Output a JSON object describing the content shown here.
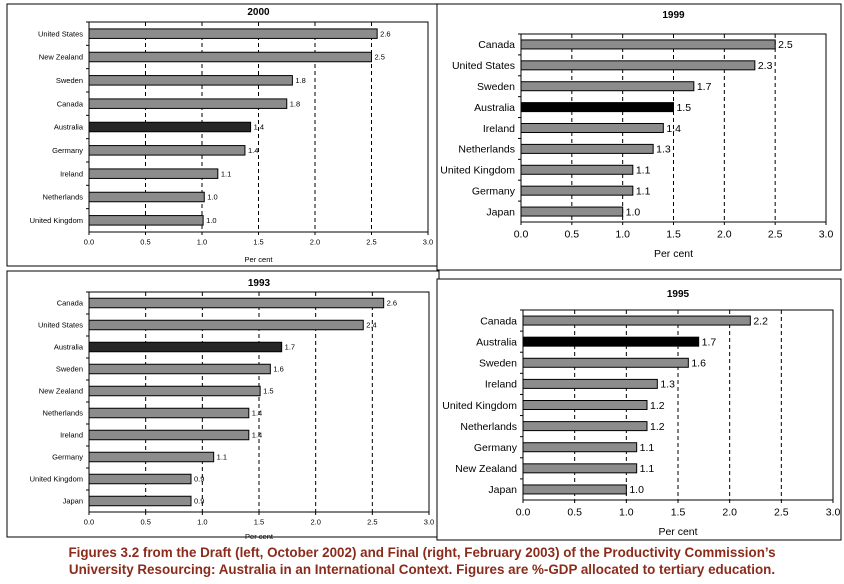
{
  "chart_data": [
    {
      "type": "bar",
      "orientation": "horizontal",
      "title": "2000",
      "xlabel": "Per cent",
      "xlim": [
        0,
        3.0
      ],
      "xticks": [
        "0.0",
        "0.5",
        "1.0",
        "1.5",
        "2.0",
        "2.5",
        "3.0"
      ],
      "grid": "vertical dashed",
      "categories": [
        "United States",
        "New Zealand",
        "Sweden",
        "Canada",
        "Australia",
        "Germany",
        "Ireland",
        "Netherlands",
        "United Kingdom"
      ],
      "values": [
        2.55,
        2.5,
        1.8,
        1.75,
        1.43,
        1.38,
        1.14,
        1.02,
        1.01
      ],
      "data_labels": [
        "2.6",
        "2.5",
        "1.8",
        "1.8",
        "1.4",
        "1.4",
        "1.1",
        "1.0",
        "1.0"
      ],
      "highlight": "Australia"
    },
    {
      "type": "bar",
      "orientation": "horizontal",
      "title": "1999",
      "xlabel": "Per cent",
      "xlim": [
        0,
        3.0
      ],
      "xticks": [
        "0.0",
        "0.5",
        "1.0",
        "1.5",
        "2.0",
        "2.5",
        "3.0"
      ],
      "grid": "vertical dashed",
      "categories": [
        "Canada",
        "United States",
        "Sweden",
        "Australia",
        "Ireland",
        "Netherlands",
        "United Kingdom",
        "Germany",
        "Japan"
      ],
      "values": [
        2.5,
        2.3,
        1.7,
        1.5,
        1.4,
        1.3,
        1.1,
        1.1,
        1.0
      ],
      "data_labels": [
        "2.5",
        "2.3",
        "1.7",
        "1.5",
        "1.4",
        "1.3",
        "1.1",
        "1.1",
        "1.0"
      ],
      "highlight": "Australia"
    },
    {
      "type": "bar",
      "orientation": "horizontal",
      "title": "1993",
      "xlabel": "Per cent",
      "xlim": [
        0,
        3.0
      ],
      "xticks": [
        "0.0",
        "0.5",
        "1.0",
        "1.5",
        "2.0",
        "2.5",
        "3.0"
      ],
      "grid": "vertical dashed",
      "categories": [
        "Canada",
        "United States",
        "Australia",
        "Sweden",
        "New Zealand",
        "Netherlands",
        "Ireland",
        "Germany",
        "United Kingdom",
        "Japan"
      ],
      "values": [
        2.6,
        2.42,
        1.7,
        1.6,
        1.51,
        1.41,
        1.41,
        1.1,
        0.9,
        0.9
      ],
      "data_labels": [
        "2.6",
        "2.4",
        "1.7",
        "1.6",
        "1.5",
        "1.4",
        "1.4",
        "1.1",
        "0.9",
        "0.9"
      ],
      "highlight": "Australia"
    },
    {
      "type": "bar",
      "orientation": "horizontal",
      "title": "1995",
      "xlabel": "Per cent",
      "xlim": [
        0,
        3.0
      ],
      "xticks": [
        "0.0",
        "0.5",
        "1.0",
        "1.5",
        "2.0",
        "2.5",
        "3.0"
      ],
      "grid": "vertical dashed",
      "categories": [
        "Canada",
        "Australia",
        "Sweden",
        "Ireland",
        "United Kingdom",
        "Netherlands",
        "Germany",
        "New Zealand",
        "Japan"
      ],
      "values": [
        2.2,
        1.7,
        1.6,
        1.3,
        1.2,
        1.2,
        1.1,
        1.1,
        1.0
      ],
      "data_labels": [
        "2.2",
        "1.7",
        "1.6",
        "1.3",
        "1.2",
        "1.2",
        "1.1",
        "1.1",
        "1.0"
      ],
      "highlight": "Australia"
    }
  ],
  "colors": {
    "bar_fill": "#8c8c8c",
    "highlight_fill": "#000000",
    "highlight_fill_draft": "#262626",
    "gridline": "#000000",
    "caption_text": "#8b2b1b"
  },
  "caption": {
    "line1": "Figures 3.2 from the Draft (left, October 2002) and Final (right, February 2003) of the Productivity Commission’s",
    "line2": "University Resourcing: Australia in an International Context. Figures are %-GDP allocated to tertiary education."
  }
}
